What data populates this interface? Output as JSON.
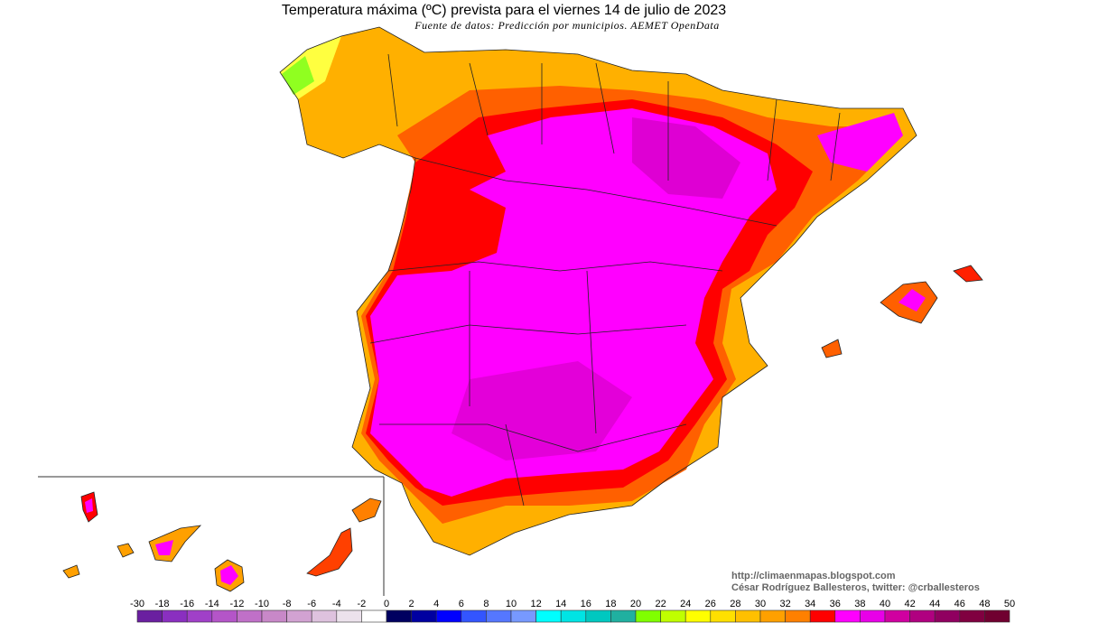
{
  "title": "Temperatura máxima (ºC) prevista para el viernes 14 de julio de 2023",
  "subtitle": "Fuente de datos: Predicción por municipios. AEMET OpenData",
  "credits": [
    "http://climaenmapas.blogspot.com",
    "César Rodríguez Ballesteros, twitter: @crballesteros"
  ],
  "colorbar": {
    "ticks": [
      -30,
      -18,
      -16,
      -14,
      -12,
      -10,
      -8,
      -6,
      -4,
      -2,
      0,
      2,
      4,
      6,
      8,
      10,
      12,
      14,
      16,
      18,
      20,
      22,
      24,
      26,
      28,
      30,
      32,
      34,
      36,
      38,
      40,
      42,
      44,
      46,
      48,
      50
    ],
    "colors": [
      "#6a1fa0",
      "#8a2fc0",
      "#a040c8",
      "#b455c8",
      "#c070c8",
      "#c888c8",
      "#d2a2d2",
      "#dec2de",
      "#ece2ec",
      "#ffffff",
      "#000060",
      "#0000a0",
      "#0000ff",
      "#3355ff",
      "#5577ff",
      "#7799ff",
      "#00ffff",
      "#00e4e4",
      "#00c8c0",
      "#20b0a0",
      "#80ff00",
      "#c0ff00",
      "#ffff00",
      "#ffe000",
      "#ffc000",
      "#ffa000",
      "#ff8000",
      "#ff0000",
      "#ff00ff",
      "#e800e8",
      "#d000a0",
      "#b00080",
      "#900060",
      "#800040",
      "#700030"
    ]
  }
}
